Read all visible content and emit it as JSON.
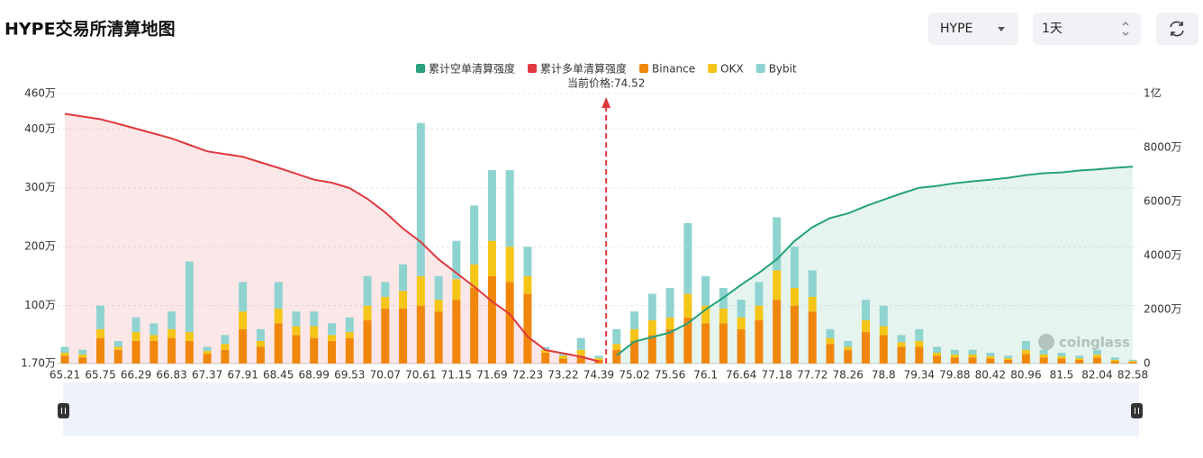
{
  "chart_data": {
    "type": "bar",
    "title": "HYPE交易所清算地图",
    "controls": {
      "symbol": "HYPE",
      "interval": "1天"
    },
    "watermark": "coinglass",
    "current_price": 74.52,
    "annotation": "当前价格:74.52",
    "grid": true,
    "legend": "top",
    "categories": [
      "65.21",
      null,
      "65.75",
      null,
      "66.29",
      null,
      "66.83",
      null,
      "67.37",
      null,
      "67.91",
      null,
      "68.45",
      null,
      "68.99",
      null,
      "69.53",
      null,
      "70.07",
      null,
      "70.61",
      null,
      "71.15",
      null,
      "71.69",
      null,
      "72.23",
      null,
      "73.22",
      null,
      "74.39",
      null,
      "75.02",
      null,
      "75.56",
      null,
      "76.1",
      null,
      "76.64",
      null,
      "77.18",
      null,
      "77.72",
      null,
      "78.26",
      null,
      "78.8",
      null,
      "79.34",
      null,
      "79.88",
      null,
      "80.42",
      null,
      "80.96",
      null,
      "81.5",
      null,
      "82.04",
      null,
      "82.58"
    ],
    "ylim": [
      1.7,
      460
    ],
    "yticks": [
      {
        "value": 1.7,
        "label": "1.70万"
      },
      {
        "value": 100,
        "label": "100万"
      },
      {
        "value": 200,
        "label": "200万"
      },
      {
        "value": 300,
        "label": "300万"
      },
      {
        "value": 400,
        "label": "400万"
      },
      {
        "value": 460,
        "label": "460万"
      }
    ],
    "y2lim": [
      0,
      10000
    ],
    "y2ticks": [
      0,
      {
        "value": 2000,
        "label": "2000万"
      },
      {
        "value": 4000,
        "label": "4000万"
      },
      {
        "value": 6000,
        "label": "6000万"
      },
      {
        "value": 8000,
        "label": "8000万"
      },
      {
        "value": 10000,
        "label": "1亿"
      }
    ],
    "series": [
      {
        "name": "累计空单清算强度",
        "type": "line",
        "axis": "y2",
        "color": "#26a17b",
        "values": [
          null,
          null,
          null,
          null,
          null,
          null,
          null,
          null,
          null,
          null,
          null,
          null,
          null,
          null,
          null,
          null,
          null,
          null,
          null,
          null,
          null,
          null,
          null,
          null,
          null,
          null,
          null,
          null,
          null,
          null,
          null,
          300,
          810,
          980,
          1150,
          1490,
          2000,
          2440,
          2920,
          3360,
          3860,
          4540,
          5050,
          5390,
          5560,
          5830,
          6070,
          6300,
          6510,
          6580,
          6680,
          6750,
          6810,
          6880,
          6980,
          7050,
          7080,
          7150,
          7190,
          7250,
          7290
        ]
      },
      {
        "name": "累计多单清算强度",
        "type": "line",
        "axis": "y2",
        "color": "#e0383e",
        "values": [
          9250,
          9150,
          9050,
          8880,
          8700,
          8520,
          8340,
          8100,
          7860,
          7760,
          7660,
          7450,
          7250,
          7030,
          6810,
          6700,
          6500,
          6100,
          5600,
          5000,
          4500,
          3860,
          3350,
          2850,
          2300,
          1830,
          1000,
          500,
          380,
          250,
          80,
          null,
          null,
          null,
          null,
          null,
          null,
          null,
          null,
          null,
          null,
          null,
          null,
          null,
          null,
          null,
          null,
          null,
          null,
          null,
          null,
          null,
          null,
          null,
          null,
          null,
          null,
          null,
          null,
          null,
          null
        ]
      },
      {
        "name": "Binance",
        "type": "bar",
        "color": "#f0870c",
        "values": [
          15,
          12,
          45,
          25,
          40,
          40,
          45,
          40,
          18,
          25,
          60,
          30,
          70,
          50,
          45,
          40,
          45,
          75,
          95,
          95,
          100,
          90,
          110,
          130,
          150,
          140,
          120,
          20,
          10,
          15,
          8,
          25,
          40,
          50,
          60,
          80,
          70,
          70,
          60,
          75,
          110,
          100,
          90,
          35,
          25,
          55,
          50,
          30,
          30,
          15,
          12,
          12,
          10,
          8,
          18,
          12,
          10,
          8,
          12,
          6,
          4
        ]
      },
      {
        "name": "OKX",
        "type": "bar",
        "color": "#f5c518",
        "values": [
          5,
          5,
          15,
          5,
          15,
          10,
          15,
          15,
          5,
          10,
          30,
          10,
          25,
          15,
          20,
          10,
          10,
          25,
          20,
          30,
          50,
          20,
          35,
          40,
          60,
          60,
          30,
          5,
          5,
          10,
          3,
          10,
          20,
          25,
          20,
          40,
          30,
          25,
          20,
          25,
          50,
          30,
          25,
          10,
          5,
          20,
          15,
          8,
          10,
          5,
          5,
          5,
          4,
          3,
          7,
          5,
          4,
          3,
          5,
          2,
          2
        ]
      },
      {
        "name": "Bybit",
        "type": "bar",
        "color": "#8fd3d1",
        "values": [
          10,
          8,
          40,
          10,
          25,
          20,
          30,
          120,
          7,
          15,
          50,
          20,
          45,
          25,
          25,
          20,
          25,
          50,
          25,
          45,
          260,
          40,
          65,
          100,
          120,
          130,
          50,
          5,
          5,
          20,
          4,
          25,
          30,
          45,
          50,
          120,
          50,
          35,
          30,
          40,
          90,
          70,
          45,
          15,
          10,
          35,
          35,
          12,
          20,
          10,
          8,
          8,
          6,
          4,
          15,
          8,
          6,
          4,
          8,
          4,
          2
        ]
      }
    ]
  }
}
